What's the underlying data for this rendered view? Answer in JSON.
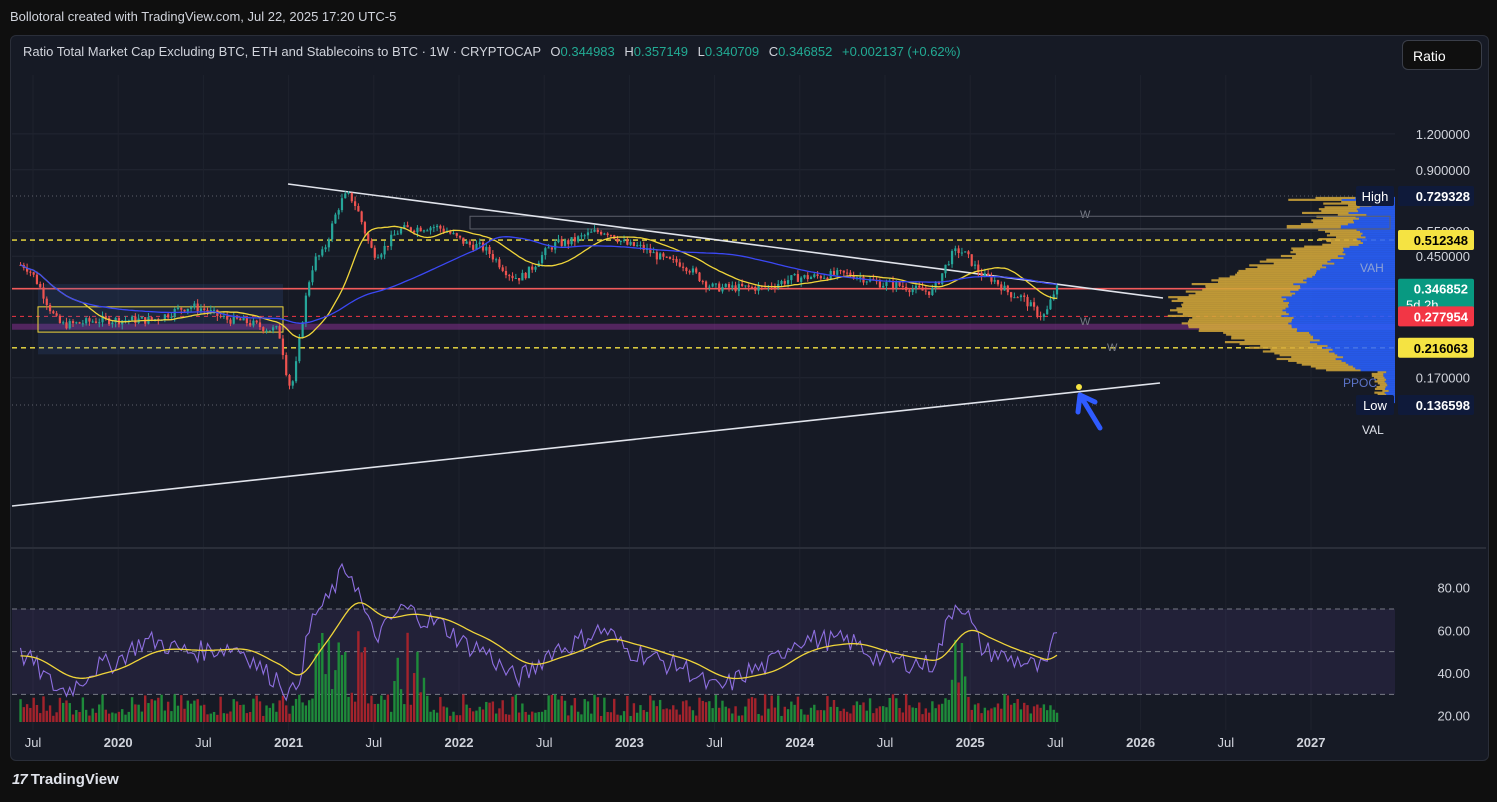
{
  "header": {
    "attribution": "Bollotoral created with TradingView.com, Jul 22, 2025 17:20 UTC-5"
  },
  "legend": {
    "symbol": "Ratio Total Market Cap Excluding BTC, ETH and Stablecoins to BTC · 1W · CRYPTOCAP",
    "open_label": "O",
    "open": "0.344983",
    "high_label": "H",
    "high": "0.357149",
    "low_label": "L",
    "low": "0.340709",
    "close_label": "C",
    "close": "0.346852",
    "change": "+0.002137 (+0.62%)"
  },
  "controls": {
    "scale_button": "Ratio"
  },
  "footer": {
    "brand": "TradingView"
  },
  "colors": {
    "background": "#161a25",
    "up": "#26a69a",
    "down": "#ef5350",
    "ema": "#f0d53a",
    "ma_long": "#3b48f5",
    "rsi": "#8e6fe0",
    "profile_blue": "#2962ff",
    "profile_gold": "#d4a83a"
  },
  "chart_data": [
    {
      "type": "line",
      "series_kind": "candlestick",
      "y_scale": "log",
      "price_axis_ticks": [
        "1.200000",
        "0.900000",
        "0.550000",
        "0.450000",
        "0.170000"
      ],
      "time_axis_ticks": [
        "Jul",
        "2020",
        "Jul",
        "2021",
        "Jul",
        "2022",
        "Jul",
        "2023",
        "Jul",
        "2024",
        "Jul",
        "2025",
        "Jul",
        "2026",
        "Jul",
        "2027"
      ],
      "price_labels": [
        {
          "name": "High",
          "value": "0.729328",
          "color": "#0f1a3a"
        },
        {
          "name": "",
          "value": "0.512348",
          "color": "#f5e342"
        },
        {
          "name": "",
          "value": "0.346852",
          "extra": "5d 2h",
          "color": "#089981"
        },
        {
          "name": "",
          "value": "0.277954",
          "color": "#f23645"
        },
        {
          "name": "",
          "value": "0.216063",
          "color": "#f5e342"
        },
        {
          "name": "Low",
          "value": "0.136598",
          "color": "#0f1a3a"
        }
      ],
      "profile_labels": [
        "VAH",
        "VAL",
        "PPOC",
        "W",
        "W",
        "W"
      ],
      "approx_path": {
        "x": [
          "2019-06",
          "2019-09",
          "2019-12",
          "2020-03",
          "2020-06",
          "2020-09",
          "2020-12",
          "2021-01",
          "2021-03",
          "2021-05",
          "2021-07",
          "2021-09",
          "2021-11",
          "2022-02",
          "2022-05",
          "2022-08",
          "2022-11",
          "2023-01",
          "2023-04",
          "2023-07",
          "2023-10",
          "2024-01",
          "2024-04",
          "2024-07",
          "2024-10",
          "2024-12",
          "2025-02",
          "2025-04",
          "2025-06",
          "2025-07"
        ],
        "y": [
          0.42,
          0.26,
          0.27,
          0.27,
          0.3,
          0.27,
          0.25,
          0.16,
          0.45,
          0.73,
          0.46,
          0.56,
          0.57,
          0.49,
          0.38,
          0.5,
          0.55,
          0.49,
          0.43,
          0.35,
          0.35,
          0.38,
          0.39,
          0.36,
          0.34,
          0.47,
          0.38,
          0.33,
          0.28,
          0.347
        ]
      }
    },
    {
      "type": "line",
      "name": "RSI",
      "y_axis_ticks": [
        "80.00",
        "60.00",
        "40.00",
        "20.00"
      ],
      "levels": [
        70,
        50,
        30
      ],
      "ylim": [
        18,
        92
      ],
      "approx_path": {
        "x": [
          "2019-06",
          "2019-09",
          "2019-12",
          "2020-03",
          "2020-06",
          "2020-09",
          "2020-12",
          "2021-01",
          "2021-03",
          "2021-05",
          "2021-07",
          "2021-09",
          "2021-11",
          "2022-02",
          "2022-05",
          "2022-08",
          "2022-11",
          "2023-01",
          "2023-04",
          "2023-07",
          "2023-10",
          "2024-01",
          "2024-04",
          "2024-07",
          "2024-10",
          "2024-12",
          "2025-02",
          "2025-04",
          "2025-06",
          "2025-07"
        ],
        "y": [
          48,
          32,
          44,
          55,
          50,
          52,
          38,
          30,
          70,
          88,
          58,
          70,
          64,
          52,
          38,
          52,
          60,
          50,
          44,
          33,
          42,
          56,
          55,
          46,
          44,
          73,
          50,
          46,
          42,
          57
        ]
      }
    }
  ]
}
